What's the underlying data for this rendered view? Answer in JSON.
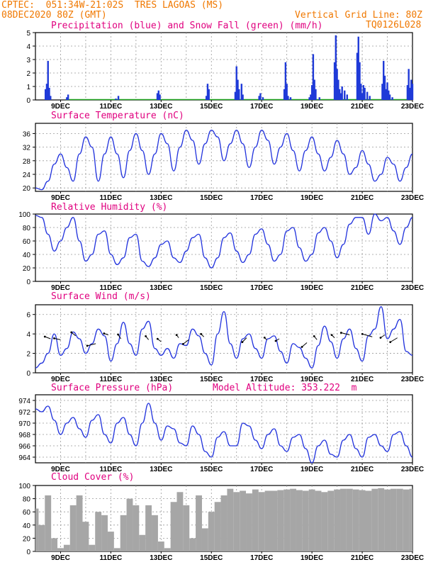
{
  "header": {
    "line1": "CPTEC:  051:34W-21:02S  TRES LAGOAS (MS)",
    "line2": "08DEC2020 80Z (GMT)",
    "grid_note": "Vertical Grid Line: 80Z",
    "code": "TQ0126L028"
  },
  "x_ticks": [
    "9DEC",
    "11DEC",
    "13DEC",
    "15DEC",
    "17DEC",
    "19DEC",
    "21DEC",
    "23DEC"
  ],
  "colors": {
    "line": "#2233dd",
    "precip": "#1f3ad8",
    "snow": "#22aa22",
    "cloud": "#a6a6a6",
    "title": "#e0007f",
    "header": "#f07800"
  },
  "chart_data": [
    {
      "type": "bar",
      "title": "Precipitation (blue) and Snow Fall (green) (mm/h)",
      "ylim": [
        0,
        5
      ],
      "yticks": [
        "0",
        "1",
        "2",
        "3",
        "4",
        "5"
      ],
      "series": [
        {
          "name": "Precipitation",
          "x": [
            8.4,
            8.45,
            8.5,
            8.55,
            8.6,
            9.25,
            9.3,
            11.2,
            11.3,
            12.85,
            12.9,
            12.95,
            14.8,
            14.85,
            14.9,
            15.95,
            16.0,
            16.05,
            16.1,
            16.2,
            16.25,
            16.9,
            16.95,
            17.05,
            17.9,
            17.95,
            18.0,
            18.05,
            18.15,
            18.9,
            18.95,
            19.0,
            19.05,
            19.1,
            19.15,
            19.3,
            19.9,
            19.95,
            20.0,
            20.05,
            20.1,
            20.15,
            20.2,
            20.3,
            20.4,
            20.8,
            20.85,
            20.9,
            20.95,
            21.0,
            21.05,
            21.1,
            21.2,
            21.3,
            21.8,
            21.85,
            21.9,
            21.95,
            22.0,
            22.05,
            22.1,
            22.2,
            22.8,
            22.85,
            22.9,
            22.95,
            23.0
          ],
          "values": [
            0.8,
            1.2,
            2.9,
            0.9,
            0.3,
            0.2,
            0.4,
            0.1,
            0.3,
            0.5,
            0.7,
            0.4,
            0.3,
            1.2,
            0.8,
            0.6,
            2.5,
            1.5,
            0.8,
            1.2,
            0.4,
            0.3,
            0.5,
            0.2,
            0.8,
            2.8,
            1.2,
            0.3,
            0.2,
            0.2,
            0.4,
            1.1,
            3.4,
            1.5,
            0.8,
            0.2,
            2.8,
            4.8,
            2.3,
            1.5,
            0.8,
            0.5,
            1.0,
            0.7,
            0.4,
            3.5,
            4.7,
            2.8,
            1.2,
            0.5,
            1.1,
            0.9,
            0.6,
            0.3,
            1.2,
            2.9,
            1.8,
            0.8,
            1.3,
            0.7,
            0.4,
            0.2,
            1.1,
            2.3,
            0.9,
            1.5,
            1.2
          ]
        },
        {
          "name": "Snow Fall",
          "values": []
        }
      ]
    },
    {
      "type": "line",
      "title": "Surface Temperature (nC)",
      "ylim": [
        19,
        39
      ],
      "yticks": [
        "20",
        "24",
        "28",
        "32",
        "36"
      ],
      "x": [
        8,
        8.25,
        8.5,
        8.75,
        9,
        9.25,
        9.5,
        9.75,
        10,
        10.25,
        10.5,
        10.75,
        11,
        11.25,
        11.5,
        11.75,
        12,
        12.25,
        12.5,
        12.75,
        13,
        13.25,
        13.5,
        13.75,
        14,
        14.25,
        14.5,
        14.75,
        15,
        15.25,
        15.5,
        15.75,
        16,
        16.25,
        16.5,
        16.75,
        17,
        17.25,
        17.5,
        17.75,
        18,
        18.25,
        18.5,
        18.75,
        19,
        19.25,
        19.5,
        19.75,
        20,
        20.25,
        20.5,
        20.75,
        21,
        21.25,
        21.5,
        21.75,
        22,
        22.25,
        22.5,
        22.75,
        23
      ],
      "values": [
        20,
        19.5,
        22,
        27,
        30,
        26,
        22,
        30,
        35,
        32,
        22,
        30,
        35,
        30,
        23,
        31,
        36,
        31,
        24,
        30,
        36,
        33,
        25,
        32,
        37,
        34,
        27,
        33,
        37,
        35,
        28,
        33,
        37,
        33,
        26,
        32,
        37,
        34,
        27,
        32,
        36,
        31,
        25,
        31,
        35,
        30,
        25,
        29,
        34,
        30,
        24,
        26,
        31,
        27,
        22,
        24,
        29,
        27,
        22,
        26,
        30
      ]
    },
    {
      "type": "line",
      "title": "Relative Humidity (%)",
      "ylim": [
        0,
        100
      ],
      "yticks": [
        "0",
        "20",
        "40",
        "60",
        "80",
        "100"
      ],
      "x": [
        8,
        8.25,
        8.5,
        8.75,
        9,
        9.25,
        9.5,
        9.75,
        10,
        10.25,
        10.5,
        10.75,
        11,
        11.25,
        11.5,
        11.75,
        12,
        12.25,
        12.5,
        12.75,
        13,
        13.25,
        13.5,
        13.75,
        14,
        14.25,
        14.5,
        14.75,
        15,
        15.25,
        15.5,
        15.75,
        16,
        16.25,
        16.5,
        16.75,
        17,
        17.25,
        17.5,
        17.75,
        18,
        18.25,
        18.5,
        18.75,
        19,
        19.25,
        19.5,
        19.75,
        20,
        20.25,
        20.5,
        20.75,
        21,
        21.25,
        21.5,
        21.75,
        22,
        22.25,
        22.5,
        22.75,
        23
      ],
      "values": [
        98,
        95,
        70,
        45,
        60,
        80,
        95,
        60,
        30,
        40,
        70,
        75,
        40,
        25,
        35,
        65,
        70,
        30,
        22,
        35,
        55,
        60,
        35,
        28,
        45,
        65,
        70,
        35,
        20,
        35,
        65,
        72,
        45,
        28,
        40,
        70,
        78,
        55,
        30,
        40,
        75,
        80,
        50,
        30,
        40,
        72,
        80,
        60,
        35,
        55,
        85,
        95,
        95,
        70,
        100,
        90,
        95,
        75,
        55,
        80,
        95
      ]
    },
    {
      "type": "line",
      "title": "Surface Wind (m/s)",
      "ylim": [
        0,
        7
      ],
      "yticks": [
        "0",
        "2",
        "4",
        "6"
      ],
      "x": [
        8,
        8.25,
        8.5,
        8.75,
        9,
        9.25,
        9.5,
        9.75,
        10,
        10.25,
        10.5,
        10.75,
        11,
        11.25,
        11.5,
        11.75,
        12,
        12.25,
        12.5,
        12.75,
        13,
        13.25,
        13.5,
        13.75,
        14,
        14.25,
        14.5,
        14.75,
        15,
        15.25,
        15.5,
        15.75,
        16,
        16.25,
        16.5,
        16.75,
        17,
        17.25,
        17.5,
        17.75,
        18,
        18.25,
        18.5,
        18.75,
        19,
        19.25,
        19.5,
        19.75,
        20,
        20.25,
        20.5,
        20.75,
        21,
        21.25,
        21.5,
        21.75,
        22,
        22.25,
        22.5,
        22.75,
        23
      ],
      "values": [
        0.5,
        1,
        2,
        4,
        1.8,
        2.5,
        4.2,
        3.5,
        2,
        3,
        4.5,
        3.8,
        1.2,
        3,
        5.2,
        3,
        1.8,
        4.5,
        5.3,
        2.5,
        1.8,
        2.5,
        1.5,
        3,
        2.8,
        4.5,
        3.8,
        2,
        0.8,
        4,
        6.3,
        3,
        1.5,
        3.5,
        4,
        2.5,
        1.5,
        3.5,
        3.8,
        2.2,
        1,
        3,
        2.6,
        1.5,
        0.5,
        2.8,
        4.8,
        3.2,
        1.5,
        3.5,
        4.5,
        2.5,
        1.2,
        3.8,
        4.5,
        6.8,
        3.5,
        4.5,
        5.5,
        2.2,
        1.8
      ]
    },
    {
      "type": "line",
      "title": "Surface Pressure (hPa)",
      "annotation": "Model Altitude: 353.222  m",
      "ylim": [
        963,
        975
      ],
      "yticks": [
        "964",
        "966",
        "968",
        "970",
        "972",
        "974"
      ],
      "x": [
        8,
        8.25,
        8.5,
        8.75,
        9,
        9.25,
        9.5,
        9.75,
        10,
        10.25,
        10.5,
        10.75,
        11,
        11.25,
        11.5,
        11.75,
        12,
        12.25,
        12.5,
        12.75,
        13,
        13.25,
        13.5,
        13.75,
        14,
        14.25,
        14.5,
        14.75,
        15,
        15.25,
        15.5,
        15.75,
        16,
        16.25,
        16.5,
        16.75,
        17,
        17.25,
        17.5,
        17.75,
        18,
        18.25,
        18.5,
        18.75,
        19,
        19.25,
        19.5,
        19.75,
        20,
        20.25,
        20.5,
        20.75,
        21,
        21.25,
        21.5,
        21.75,
        22,
        22.25,
        22.5,
        22.75,
        23
      ],
      "values": [
        972.5,
        972,
        973,
        970.5,
        968,
        970,
        971,
        969,
        967.5,
        970.5,
        971.5,
        968,
        966.5,
        970,
        971,
        968,
        966,
        970,
        973.5,
        970,
        967,
        969.5,
        969,
        966.5,
        966,
        969.5,
        968,
        965,
        964,
        967.5,
        968.5,
        966,
        966,
        970,
        969.5,
        967,
        965.5,
        968,
        969,
        966,
        965,
        967.5,
        968,
        965.5,
        963,
        966,
        967,
        964.5,
        964,
        967,
        968,
        965.5,
        964,
        967.5,
        968,
        966,
        965,
        968,
        968.5,
        966,
        964
      ]
    },
    {
      "type": "bar",
      "title": "Cloud Cover (%)",
      "ylim": [
        0,
        100
      ],
      "yticks": [
        "0",
        "20",
        "40",
        "60",
        "80",
        "100"
      ],
      "x": [
        8,
        8.25,
        8.5,
        8.75,
        9,
        9.25,
        9.5,
        9.75,
        10,
        10.25,
        10.5,
        10.75,
        11,
        11.25,
        11.5,
        11.75,
        12,
        12.25,
        12.5,
        12.75,
        13,
        13.25,
        13.5,
        13.75,
        14,
        14.25,
        14.5,
        14.75,
        15,
        15.25,
        15.5,
        15.75,
        16,
        16.25,
        16.5,
        16.75,
        17,
        17.25,
        17.5,
        17.75,
        18,
        18.25,
        18.5,
        18.75,
        19,
        19.25,
        19.5,
        19.75,
        20,
        20.25,
        20.5,
        20.75,
        21,
        21.25,
        21.5,
        21.75,
        22,
        22.25,
        22.5,
        22.75,
        23
      ],
      "values": [
        65,
        40,
        85,
        20,
        5,
        10,
        70,
        85,
        45,
        10,
        60,
        55,
        30,
        5,
        55,
        80,
        70,
        25,
        70,
        55,
        15,
        5,
        75,
        90,
        70,
        20,
        85,
        35,
        60,
        75,
        85,
        95,
        90,
        92,
        88,
        94,
        90,
        92,
        92,
        93,
        94,
        95,
        93,
        92,
        94,
        92,
        90,
        92,
        94,
        95,
        95,
        94,
        93,
        92,
        95,
        96,
        94,
        95,
        95,
        94,
        95
      ]
    }
  ]
}
